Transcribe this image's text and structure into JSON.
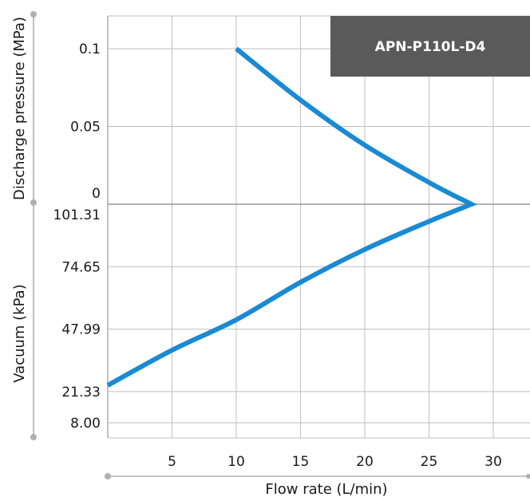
{
  "chart_data": {
    "type": "line",
    "model_label": "APN-P110L-D4",
    "x_axis": {
      "label": "Flow rate (L/min)",
      "range": [
        0,
        33
      ],
      "ticks": [
        5,
        10,
        15,
        20,
        25,
        30
      ]
    },
    "y_axis_upper": {
      "label": "Discharge pressure (MPa)",
      "range": [
        0,
        0.12
      ],
      "ticks": [
        0.1,
        0.05,
        0
      ],
      "tick_labels": [
        "0.1",
        "0.05",
        "0"
      ]
    },
    "y_axis_lower": {
      "label": "Vacuum (kPa)",
      "range": [
        101.31,
        0
      ],
      "ticks": [
        101.31,
        74.65,
        47.99,
        21.33,
        8.0
      ],
      "tick_labels": [
        "101.31",
        "74.65",
        "47.99",
        "21.33",
        "8.00"
      ]
    },
    "grid": true,
    "series": [
      {
        "color": "#1a8ad4",
        "pressure_points": [
          {
            "x": 10,
            "y": 0.1
          },
          {
            "x": 15,
            "y": 0.067
          },
          {
            "x": 20,
            "y": 0.038
          },
          {
            "x": 25,
            "y": 0.014
          },
          {
            "x": 28.3,
            "y": 0
          }
        ],
        "vacuum_points": [
          {
            "x": 28.3,
            "y": 101.31
          },
          {
            "x": 25,
            "y": 94
          },
          {
            "x": 20,
            "y": 82
          },
          {
            "x": 15,
            "y": 68
          },
          {
            "x": 10,
            "y": 52
          },
          {
            "x": 5,
            "y": 39
          },
          {
            "x": 0,
            "y": 24
          }
        ]
      }
    ]
  },
  "colors": {
    "line": "#1a8ad4",
    "grid": "#bfbfbf",
    "badge_bg": "#5a5a5a",
    "axis_line": "#b0b0b0",
    "zero_line": "#999999"
  }
}
